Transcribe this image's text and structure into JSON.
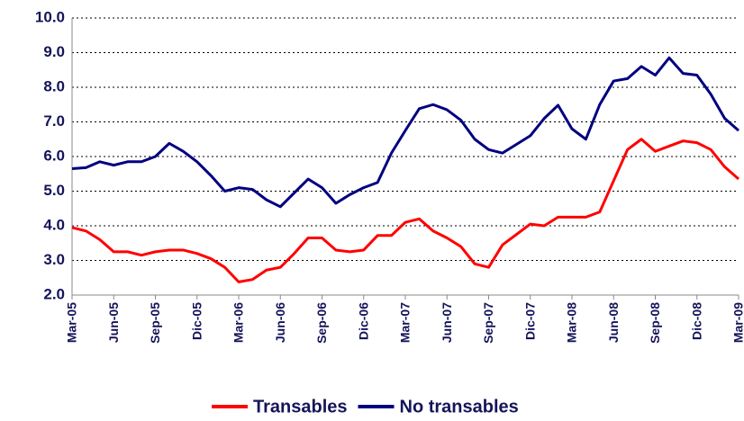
{
  "chart_data": {
    "type": "line",
    "categories": [
      "Mar-05",
      null,
      null,
      "Jun-05",
      null,
      null,
      "Sep-05",
      null,
      null,
      "Dic-05",
      null,
      null,
      "Mar-06",
      null,
      null,
      "Jun-06",
      null,
      null,
      "Sep-06",
      null,
      null,
      "Dic-06",
      null,
      null,
      "Mar-07",
      null,
      null,
      "Jun-07",
      null,
      null,
      "Sep-07",
      null,
      null,
      "Dic-07",
      null,
      null,
      "Mar-08",
      null,
      null,
      "Jun-08",
      null,
      null,
      "Sep-08",
      null,
      null,
      "Dic-08",
      null,
      null,
      "Mar-09"
    ],
    "series": [
      {
        "name": "Transables",
        "color": "#ff0000",
        "values": [
          3.95,
          3.85,
          3.6,
          3.25,
          3.25,
          3.15,
          3.25,
          3.3,
          3.3,
          3.2,
          3.05,
          2.8,
          2.38,
          2.45,
          2.72,
          2.8,
          3.2,
          3.65,
          3.65,
          3.3,
          3.25,
          3.3,
          3.72,
          3.72,
          4.1,
          4.2,
          3.85,
          3.65,
          3.4,
          2.9,
          2.8,
          3.45,
          3.75,
          4.05,
          4.0,
          4.25,
          4.25,
          4.25,
          4.4,
          5.3,
          6.2,
          6.5,
          6.15,
          6.3,
          6.45,
          6.4,
          6.2,
          5.7,
          5.35
        ]
      },
      {
        "name": "No transables",
        "color": "#000080",
        "values": [
          5.65,
          5.68,
          5.85,
          5.75,
          5.85,
          5.85,
          6.0,
          6.38,
          6.15,
          5.85,
          5.45,
          5.0,
          5.1,
          5.05,
          4.75,
          4.55,
          4.95,
          5.35,
          5.1,
          4.65,
          4.9,
          5.1,
          5.25,
          6.1,
          6.75,
          7.38,
          7.5,
          7.35,
          7.05,
          6.5,
          6.2,
          6.1,
          6.35,
          6.6,
          7.1,
          7.48,
          6.8,
          6.5,
          7.5,
          8.18,
          8.25,
          8.6,
          8.35,
          8.85,
          8.4,
          8.35,
          7.8,
          7.1,
          6.75
        ]
      }
    ],
    "ylim": [
      2,
      10
    ],
    "yticks": [
      {
        "value": 2,
        "label": "2.0"
      },
      {
        "value": 3,
        "label": "3.0"
      },
      {
        "value": 4,
        "label": "4.0"
      },
      {
        "value": 5,
        "label": "5.0"
      },
      {
        "value": 6,
        "label": "6.0"
      },
      {
        "value": 7,
        "label": "7.0"
      },
      {
        "value": 8,
        "label": "8.0"
      },
      {
        "value": 9,
        "label": "9.0"
      },
      {
        "value": 10,
        "label": "10.0"
      }
    ],
    "grid": true,
    "legend": "bottom"
  }
}
